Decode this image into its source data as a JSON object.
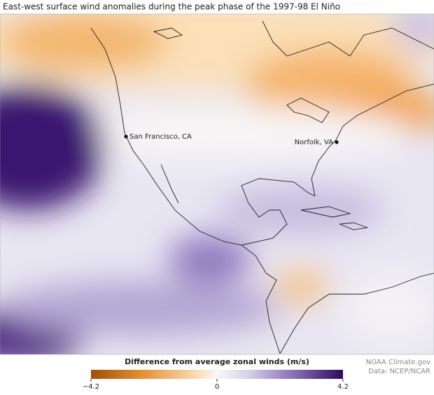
{
  "title": "East-west surface wind anomalies during the peak phase of the 1997-98 El Niño",
  "map": {
    "places": [
      {
        "label": "San Francisco, CA"
      },
      {
        "label": "Norfolk, VA"
      }
    ]
  },
  "legend": {
    "title": "Difference from average zonal winds (m/s)",
    "ticks": [
      {
        "value": -4.2,
        "label": "−4.2"
      },
      0,
      4.2
    ]
  },
  "credits": [
    "NOAA Climate.gov",
    "Data: NCEP/NCAR"
  ]
}
